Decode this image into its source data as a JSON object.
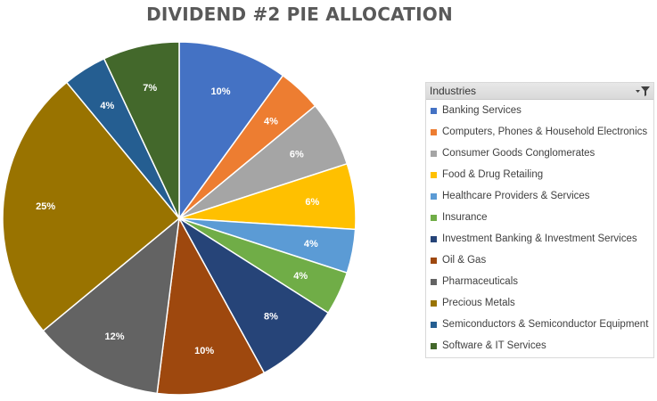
{
  "chart_data": {
    "type": "pie",
    "title": "DIVIDEND #2 PIE ALLOCATION",
    "legend_title": "Industries",
    "legend_position": "right",
    "slices": [
      {
        "name": "Banking Services",
        "value": 10,
        "label": "10%",
        "color": "#4472C4"
      },
      {
        "name": "Computers, Phones & Household Electronics",
        "value": 4,
        "label": "4%",
        "color": "#ED7D31"
      },
      {
        "name": "Consumer Goods Conglomerates",
        "value": 6,
        "label": "6%",
        "color": "#A5A5A5"
      },
      {
        "name": "Food & Drug Retailing",
        "value": 6,
        "label": "6%",
        "color": "#FFC000"
      },
      {
        "name": "Healthcare Providers & Services",
        "value": 4,
        "label": "4%",
        "color": "#5B9BD5"
      },
      {
        "name": "Insurance",
        "value": 4,
        "label": "4%",
        "color": "#70AD47"
      },
      {
        "name": "Investment Banking & Investment Services",
        "value": 8,
        "label": "8%",
        "color": "#264478"
      },
      {
        "name": "Oil & Gas",
        "value": 10,
        "label": "10%",
        "color": "#9E480E"
      },
      {
        "name": "Pharmaceuticals",
        "value": 12,
        "label": "12%",
        "color": "#636363"
      },
      {
        "name": "Precious Metals",
        "value": 25,
        "label": "25%",
        "color": "#997300"
      },
      {
        "name": "Semiconductors & Semiconductor Equipment",
        "value": 4,
        "label": "4%",
        "color": "#255E91"
      },
      {
        "name": "Software & IT Services",
        "value": 7,
        "label": "7%",
        "color": "#43682B"
      }
    ]
  },
  "icons": {
    "legend_filter": "filter-dropdown-icon"
  }
}
